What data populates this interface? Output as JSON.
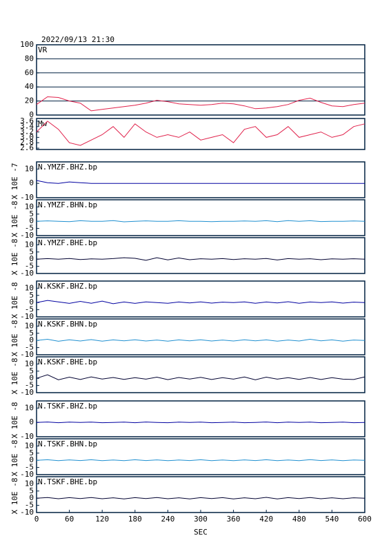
{
  "chart_data": [
    {
      "type": "line",
      "title": "2022/09/13 21:30",
      "label": "VR",
      "color": "#e0204a",
      "x": [
        0,
        20,
        40,
        60,
        80,
        100,
        120,
        140,
        160,
        180,
        200,
        220,
        240,
        260,
        280,
        300,
        320,
        340,
        360,
        380,
        400,
        420,
        440,
        460,
        480,
        500,
        520,
        540,
        560,
        580,
        600
      ],
      "values": [
        15,
        26,
        25,
        20,
        17,
        6,
        8,
        10,
        12,
        14,
        17,
        21,
        19,
        16,
        15,
        14,
        15,
        17,
        16,
        13,
        9,
        10,
        12,
        15,
        21,
        24,
        18,
        13,
        12,
        15,
        17
      ],
      "xlim": [
        0,
        600
      ],
      "ylim": [
        0,
        100
      ],
      "yticks": [
        0,
        20,
        40,
        60,
        80,
        100
      ],
      "grid": true
    },
    {
      "type": "line",
      "label": "Mw",
      "color": "#e0204a",
      "x": [
        0,
        20,
        40,
        60,
        80,
        100,
        120,
        140,
        160,
        180,
        200,
        220,
        240,
        260,
        280,
        300,
        320,
        340,
        360,
        380,
        400,
        420,
        440,
        460,
        480,
        500,
        520,
        540,
        560,
        580,
        600
      ],
      "values": [
        3.2,
        3.6,
        3.3,
        2.8,
        2.7,
        2.9,
        3.1,
        3.4,
        3.0,
        3.5,
        3.2,
        3.0,
        3.1,
        3.0,
        3.2,
        2.9,
        3.0,
        3.1,
        2.8,
        3.3,
        3.4,
        3.0,
        3.1,
        3.4,
        3.0,
        3.1,
        3.2,
        3.0,
        3.1,
        3.4,
        3.5
      ],
      "xlim": [
        0,
        600
      ],
      "ylim": [
        2.55,
        3.7
      ],
      "yticks": [
        2.6,
        2.8,
        {
          "value": 3,
          "label": "3.0"
        },
        3.2,
        3.4,
        3.6
      ]
    },
    {
      "type": "line",
      "label": "N.YMZF.BHZ.bp",
      "ylabel": "X 10E -7",
      "color": "#0000a0",
      "x": [
        0,
        20,
        40,
        60,
        80,
        100,
        120,
        140,
        160,
        180,
        200,
        220,
        240,
        260,
        280,
        300,
        320,
        340,
        360,
        380,
        400,
        420,
        440,
        460,
        480,
        500,
        520,
        540,
        560,
        580,
        600
      ],
      "values": [
        2,
        0.5,
        0,
        1,
        0.5,
        0,
        0,
        0,
        0,
        0,
        0,
        0,
        0,
        0,
        0,
        0,
        0,
        0,
        0,
        0,
        0,
        0,
        0,
        0,
        0,
        0,
        0,
        0,
        0,
        0,
        0
      ],
      "xlim": [
        0,
        600
      ],
      "ylim": [
        -10,
        15
      ],
      "yticks": [
        -10,
        0,
        10
      ]
    },
    {
      "type": "line",
      "label": "N.YMZF.BHN.bp",
      "ylabel": "X 10E -8",
      "color": "#1e8fd0",
      "x": [
        0,
        20,
        40,
        60,
        80,
        100,
        120,
        140,
        160,
        180,
        200,
        220,
        240,
        260,
        280,
        300,
        320,
        340,
        360,
        380,
        400,
        420,
        440,
        460,
        480,
        500,
        520,
        540,
        560,
        580,
        600
      ],
      "values": [
        0,
        0.3,
        0,
        -0.3,
        0.4,
        0,
        0,
        0.5,
        -0.4,
        0,
        0.3,
        0,
        0,
        0.4,
        0,
        0,
        -0.3,
        0,
        0,
        0.2,
        0,
        0.4,
        -0.3,
        0.5,
        0,
        0.4,
        -0.2,
        0,
        0,
        0.2,
        0
      ],
      "xlim": [
        0,
        600
      ],
      "ylim": [
        -10,
        15
      ],
      "yticks": [
        -10,
        -5,
        0,
        5,
        10
      ]
    },
    {
      "type": "line",
      "label": "N.YMZF.BHE.bp",
      "ylabel": "X 10E -8",
      "color": "#000030",
      "x": [
        0,
        20,
        40,
        60,
        80,
        100,
        120,
        140,
        160,
        180,
        200,
        220,
        240,
        260,
        280,
        300,
        320,
        340,
        360,
        380,
        400,
        420,
        440,
        460,
        480,
        500,
        520,
        540,
        560,
        580,
        600
      ],
      "values": [
        0,
        0.4,
        0,
        0.5,
        -0.3,
        0.2,
        0,
        0.4,
        1,
        0.6,
        -0.8,
        1,
        -0.5,
        0.8,
        -0.4,
        0.3,
        0,
        0.4,
        -0.3,
        0.3,
        0,
        0.5,
        -0.6,
        0.4,
        0,
        0.3,
        -0.4,
        0.2,
        0,
        0.3,
        0
      ],
      "xlim": [
        0,
        600
      ],
      "ylim": [
        -10,
        15
      ],
      "yticks": [
        -10,
        -5,
        0,
        5,
        10
      ]
    },
    {
      "type": "line",
      "label": "N.KSKF.BHZ.bp",
      "ylabel": "X 10E -8",
      "color": "#0000a0",
      "x": [
        0,
        20,
        40,
        60,
        80,
        100,
        120,
        140,
        160,
        180,
        200,
        220,
        240,
        260,
        280,
        300,
        320,
        340,
        360,
        380,
        400,
        420,
        440,
        460,
        480,
        500,
        520,
        540,
        560,
        580,
        600
      ],
      "values": [
        0,
        1.5,
        0.5,
        -0.6,
        0.8,
        -0.5,
        1,
        -0.8,
        0.4,
        -0.6,
        0.5,
        0,
        -0.5,
        0.4,
        -0.3,
        0.5,
        -0.4,
        0.3,
        0,
        0.5,
        -0.5,
        0.4,
        -0.3,
        0.6,
        -0.5,
        0.4,
        0,
        0.5,
        -0.4,
        0.3,
        0
      ],
      "xlim": [
        0,
        600
      ],
      "ylim": [
        -10,
        15
      ],
      "yticks": [
        -10,
        -5,
        0,
        5,
        10
      ]
    },
    {
      "type": "line",
      "label": "N.KSKF.BHN.bp",
      "ylabel": "X 10E -8",
      "color": "#1e8fd0",
      "x": [
        0,
        20,
        40,
        60,
        80,
        100,
        120,
        140,
        160,
        180,
        200,
        220,
        240,
        260,
        280,
        300,
        320,
        340,
        360,
        380,
        400,
        420,
        440,
        460,
        480,
        500,
        520,
        540,
        560,
        580,
        600
      ],
      "values": [
        0,
        0.8,
        -0.6,
        0.5,
        -0.4,
        0.6,
        -0.5,
        0.4,
        -0.3,
        0.5,
        -0.4,
        0.3,
        -0.5,
        0.4,
        -0.3,
        0.5,
        -0.4,
        0.3,
        -0.4,
        0.5,
        -0.3,
        0.4,
        -0.5,
        0.3,
        -0.4,
        0.8,
        -0.3,
        0.4,
        -0.5,
        0.3,
        0
      ],
      "xlim": [
        0,
        600
      ],
      "ylim": [
        -10,
        15
      ],
      "yticks": [
        -10,
        -5,
        0,
        5,
        10
      ]
    },
    {
      "type": "line",
      "label": "N.KSKF.BHE.bp",
      "ylabel": "X 10E -8",
      "color": "#000030",
      "x": [
        0,
        20,
        40,
        60,
        80,
        100,
        120,
        140,
        160,
        180,
        200,
        220,
        240,
        260,
        280,
        300,
        320,
        340,
        360,
        380,
        400,
        420,
        440,
        460,
        480,
        500,
        520,
        540,
        560,
        580,
        600
      ],
      "values": [
        0,
        2.5,
        -1,
        0.8,
        -0.8,
        1,
        -0.5,
        0.6,
        -0.7,
        0.5,
        -0.6,
        0.8,
        -0.9,
        0.6,
        -0.5,
        0.7,
        -0.8,
        0.5,
        -0.6,
        0.9,
        -1,
        0.8,
        -0.6,
        0.5,
        -0.7,
        0.6,
        -0.8,
        0.5,
        -0.6,
        -0.8,
        1
      ],
      "xlim": [
        0,
        600
      ],
      "ylim": [
        -10,
        15
      ],
      "yticks": [
        -10,
        -5,
        0,
        5,
        10
      ]
    },
    {
      "type": "line",
      "label": "N.TSKF.BHZ.bp",
      "ylabel": "X 10E -8",
      "color": "#0000a0",
      "x": [
        0,
        20,
        40,
        60,
        80,
        100,
        120,
        140,
        160,
        180,
        200,
        220,
        240,
        260,
        280,
        300,
        320,
        340,
        360,
        380,
        400,
        420,
        440,
        460,
        480,
        500,
        520,
        540,
        560,
        580,
        600
      ],
      "values": [
        0,
        0.3,
        -0.2,
        0.2,
        0,
        0.2,
        -0.2,
        0,
        0.2,
        -0.2,
        0.3,
        0,
        -0.2,
        0.2,
        0,
        0.2,
        -0.2,
        0,
        0.2,
        -0.2,
        0,
        0.3,
        -0.2,
        0.2,
        0,
        0.2,
        -0.2,
        0,
        0.2,
        -0.2,
        0
      ],
      "xlim": [
        0,
        600
      ],
      "ylim": [
        -10,
        15
      ],
      "yticks": [
        -10,
        0,
        10
      ]
    },
    {
      "type": "line",
      "label": "N.TSKF.BHN.bp",
      "ylabel": "X 10E -8",
      "color": "#1e8fd0",
      "x": [
        0,
        20,
        40,
        60,
        80,
        100,
        120,
        140,
        160,
        180,
        200,
        220,
        240,
        260,
        280,
        300,
        320,
        340,
        360,
        380,
        400,
        420,
        440,
        460,
        480,
        500,
        520,
        540,
        560,
        580,
        600
      ],
      "values": [
        0,
        0.4,
        -0.3,
        0.3,
        -0.2,
        0.4,
        -0.3,
        0.2,
        -0.3,
        0.4,
        -0.2,
        0.3,
        -0.3,
        0.2,
        -0.2,
        0.4,
        -0.3,
        0.2,
        -0.3,
        0.3,
        -0.2,
        0.4,
        -0.3,
        0.2,
        -0.3,
        0.5,
        -0.2,
        0.3,
        -0.3,
        0.2,
        0
      ],
      "xlim": [
        0,
        600
      ],
      "ylim": [
        -10,
        15
      ],
      "yticks": [
        -10,
        -5,
        0,
        5,
        10
      ]
    },
    {
      "type": "line",
      "label": "N.TSKF.BHE.bp",
      "ylabel": "X 10E -8",
      "color": "#000030",
      "x": [
        0,
        20,
        40,
        60,
        80,
        100,
        120,
        140,
        160,
        180,
        200,
        220,
        240,
        260,
        280,
        300,
        320,
        340,
        360,
        380,
        400,
        420,
        440,
        460,
        480,
        500,
        520,
        540,
        560,
        580,
        600
      ],
      "values": [
        0,
        0.5,
        -0.4,
        0.4,
        -0.3,
        0.5,
        -0.4,
        0.3,
        -0.5,
        0.4,
        -0.3,
        0.5,
        -0.4,
        0.3,
        -0.5,
        0.4,
        -0.3,
        0.4,
        -0.5,
        0.3,
        -0.4,
        0.6,
        -0.5,
        0.4,
        -0.3,
        0.5,
        -0.4,
        0.3,
        -0.4,
        0.3,
        0
      ],
      "xlim": [
        0,
        600
      ],
      "ylim": [
        -10,
        15
      ],
      "yticks": [
        -10,
        -5,
        0,
        5,
        10
      ],
      "xticks": [
        0,
        60,
        120,
        180,
        240,
        300,
        360,
        420,
        480,
        540,
        600
      ],
      "xlabel": "SEC"
    }
  ]
}
